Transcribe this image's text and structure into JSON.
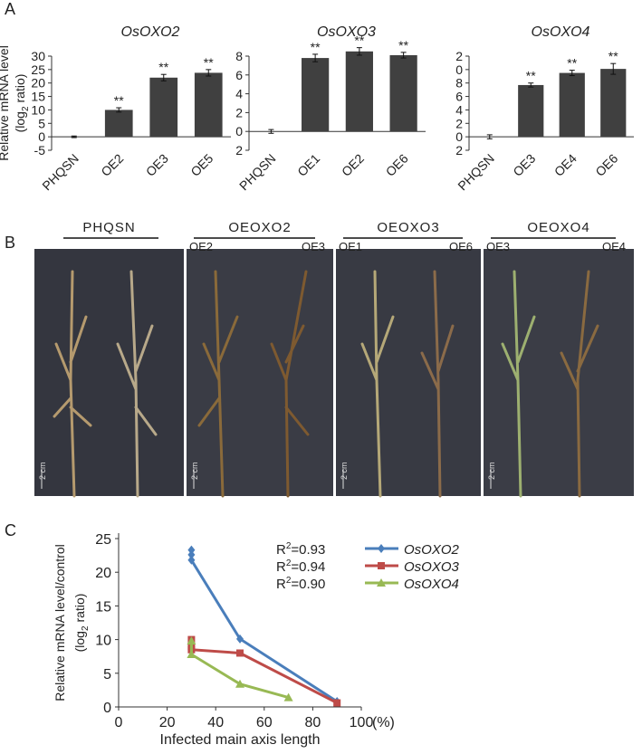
{
  "panel_labels": [
    "A",
    "B",
    "C"
  ],
  "chart_data": [
    {
      "type": "bar",
      "title": "OsOXO2",
      "ylabel": {
        "line1": "Relative mRNA level",
        "line2": [
          "(log",
          "2",
          "ratio)"
        ]
      },
      "categories": [
        "PHQSN",
        "OE2",
        "OE3",
        "OE5"
      ],
      "values": [
        0,
        10,
        22,
        23.8
      ],
      "errors": [
        0.3,
        0.8,
        1.2,
        1.2
      ],
      "annotations": [
        null,
        "**",
        "**",
        "**"
      ],
      "color": "#404040",
      "ylim": [
        -5,
        30
      ],
      "yticks": [
        -5,
        0,
        5,
        10,
        15,
        20,
        25,
        30
      ]
    },
    {
      "type": "bar",
      "title": "OsOXO3",
      "categories": [
        "PHQSN",
        "OE1",
        "OE2",
        "OE6"
      ],
      "values": [
        0,
        7.8,
        8.5,
        8.1
      ],
      "errors": [
        0.2,
        0.4,
        0.4,
        0.3
      ],
      "annotations": [
        null,
        "**",
        "**",
        "**"
      ],
      "color": "#404040",
      "ylim": [
        -2,
        8
      ],
      "yticks": [
        {
          "value": -2,
          "label": "2"
        },
        0,
        2,
        4,
        6,
        8
      ]
    },
    {
      "type": "bar",
      "title": "OsOXO4",
      "categories": [
        "PHQSN",
        "OE3",
        "OE4",
        "OE6"
      ],
      "values": [
        0,
        7.7,
        9.5,
        10.1
      ],
      "errors": [
        0.3,
        0.3,
        0.4,
        0.8
      ],
      "annotations": [
        null,
        "**",
        "**",
        "**"
      ],
      "color": "#404040",
      "ylim": [
        -2,
        12
      ],
      "yticks": [
        {
          "value": -2,
          "label": "2"
        },
        0,
        2,
        4,
        6,
        8,
        {
          "value": 10,
          "label": "0"
        },
        {
          "value": 12,
          "label": "2"
        }
      ]
    },
    {
      "type": "line",
      "xlabel": "Infected main axis length",
      "xunit": "(%)",
      "ylabel": {
        "line1": "Relative mRNA level/control",
        "line2": [
          "(log",
          "2",
          "ratio)"
        ]
      },
      "series": [
        {
          "name": "OsOXO2",
          "color": "#4a7ebb",
          "marker": "diamond",
          "x": [
            30,
            30,
            30,
            50,
            90
          ],
          "values": [
            23.3,
            22.6,
            21.8,
            10.1,
            0.8
          ]
        },
        {
          "name": "OsOXO3",
          "color": "#be4b48",
          "marker": "square",
          "x": [
            30,
            30,
            30,
            50,
            90
          ],
          "values": [
            10,
            9,
            8.5,
            8,
            0.6
          ]
        },
        {
          "name": "OsOXO4",
          "color": "#98b954",
          "marker": "triangle",
          "x": [
            30,
            30,
            50,
            70
          ],
          "values": [
            9.8,
            7.8,
            3.4,
            1.4
          ]
        }
      ],
      "annotations": [
        [
          "R",
          "2",
          "=0.93"
        ],
        [
          "R",
          "2",
          "=0.94"
        ],
        [
          "R",
          "2",
          "=0.90"
        ]
      ],
      "xlim": [
        0,
        100
      ],
      "xticks": [
        0,
        20,
        40,
        60,
        80,
        100
      ],
      "ylim": [
        0,
        25
      ],
      "yticks": [
        0,
        5,
        10,
        15,
        20,
        25
      ],
      "legend": "upper right",
      "grid": false
    }
  ],
  "panel_b": {
    "groups": [
      {
        "name": "PHQSN"
      },
      {
        "name": "OEOXO2",
        "lines": [
          "OE2",
          "OE3"
        ]
      },
      {
        "name": "OEOXO3",
        "lines": [
          "OE1",
          "OE6"
        ]
      },
      {
        "name": "OEOXO4",
        "lines": [
          "OE3",
          "OE4"
        ]
      }
    ],
    "scale_bar": "2 cm"
  }
}
